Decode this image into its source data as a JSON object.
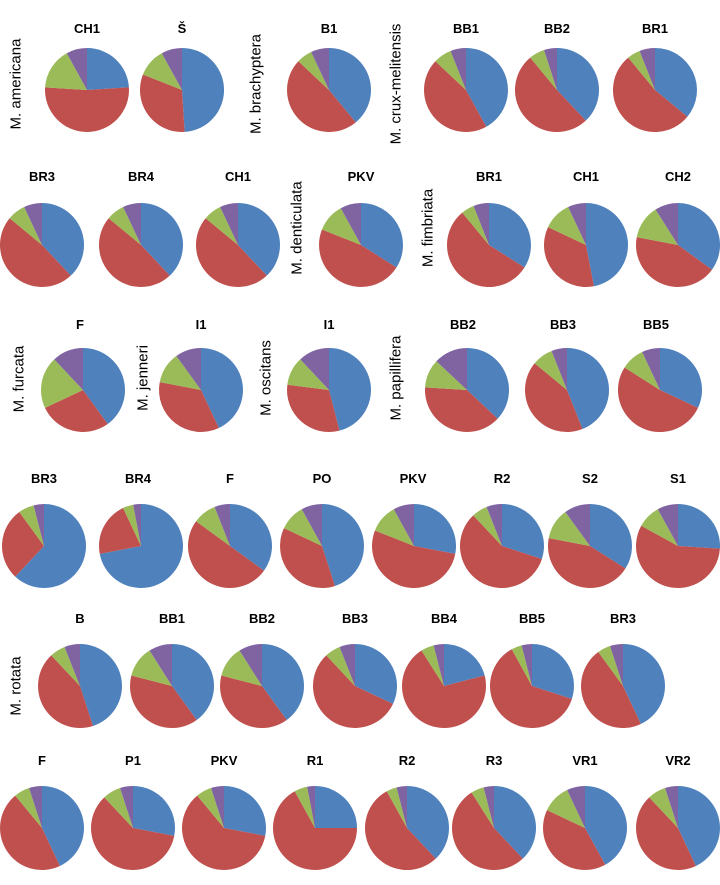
{
  "chart_data": {
    "type": "pie",
    "slice_colors": [
      "#4f81bd",
      "#c0504d",
      "#9bbb59",
      "#8064a2"
    ],
    "species": [
      "M. americana",
      "M. brachyptera",
      "M. crux-melitensis",
      "M. denticulata",
      "M. fimbriata",
      "M. furcata",
      "M. jenneri",
      "M. oscitans",
      "M. papillifera",
      "M. rotata"
    ],
    "pies": [
      {
        "label": "CH1",
        "values": [
          0.24,
          0.52,
          0.16,
          0.08
        ]
      },
      {
        "label": "Š",
        "values": [
          0.49,
          0.32,
          0.11,
          0.08
        ]
      },
      {
        "label": "B1",
        "values": [
          0.39,
          0.48,
          0.06,
          0.07
        ]
      },
      {
        "label": "BB1",
        "values": [
          0.42,
          0.45,
          0.07,
          0.06
        ]
      },
      {
        "label": "BB2",
        "values": [
          0.38,
          0.51,
          0.06,
          0.05
        ]
      },
      {
        "label": "BR1",
        "values": [
          0.36,
          0.53,
          0.05,
          0.06
        ]
      },
      {
        "label": "BR3",
        "values": [
          0.38,
          0.48,
          0.07,
          0.07
        ]
      },
      {
        "label": "BR4",
        "values": [
          0.38,
          0.48,
          0.07,
          0.07
        ]
      },
      {
        "label": "CH1",
        "values": [
          0.38,
          0.48,
          0.07,
          0.07
        ]
      },
      {
        "label": "PKV",
        "values": [
          0.34,
          0.47,
          0.11,
          0.08
        ]
      },
      {
        "label": "BR1",
        "values": [
          0.34,
          0.55,
          0.05,
          0.06
        ]
      },
      {
        "label": "CH1",
        "values": [
          0.47,
          0.35,
          0.11,
          0.07
        ]
      },
      {
        "label": "CH2",
        "values": [
          0.35,
          0.43,
          0.13,
          0.09
        ]
      },
      {
        "label": "F",
        "values": [
          0.4,
          0.28,
          0.2,
          0.12
        ]
      },
      {
        "label": "I1",
        "values": [
          0.43,
          0.35,
          0.12,
          0.1
        ]
      },
      {
        "label": "I1",
        "values": [
          0.46,
          0.31,
          0.11,
          0.12
        ]
      },
      {
        "label": "BB2",
        "values": [
          0.37,
          0.39,
          0.11,
          0.13
        ]
      },
      {
        "label": "BB3",
        "values": [
          0.44,
          0.42,
          0.08,
          0.06
        ]
      },
      {
        "label": "BB5",
        "values": [
          0.32,
          0.52,
          0.09,
          0.07
        ]
      },
      {
        "label": "BR3",
        "values": [
          0.62,
          0.28,
          0.06,
          0.04
        ]
      },
      {
        "label": "BR4",
        "values": [
          0.72,
          0.21,
          0.04,
          0.03
        ]
      },
      {
        "label": "F",
        "values": [
          0.35,
          0.5,
          0.09,
          0.06
        ]
      },
      {
        "label": "PO",
        "values": [
          0.45,
          0.37,
          0.1,
          0.08
        ]
      },
      {
        "label": "PKV",
        "values": [
          0.28,
          0.53,
          0.11,
          0.08
        ]
      },
      {
        "label": "R2",
        "values": [
          0.3,
          0.58,
          0.06,
          0.06
        ]
      },
      {
        "label": "S2",
        "values": [
          0.34,
          0.44,
          0.12,
          0.1
        ]
      },
      {
        "label": "S1",
        "values": [
          0.26,
          0.57,
          0.09,
          0.08
        ]
      },
      {
        "label": "B",
        "values": [
          0.45,
          0.43,
          0.06,
          0.06
        ]
      },
      {
        "label": "BB1",
        "values": [
          0.4,
          0.39,
          0.12,
          0.09
        ]
      },
      {
        "label": "BB2",
        "values": [
          0.4,
          0.39,
          0.12,
          0.09
        ]
      },
      {
        "label": "BB3",
        "values": [
          0.32,
          0.56,
          0.06,
          0.06
        ]
      },
      {
        "label": "BB4",
        "values": [
          0.21,
          0.7,
          0.05,
          0.04
        ]
      },
      {
        "label": "BB5",
        "values": [
          0.3,
          0.62,
          0.04,
          0.04
        ]
      },
      {
        "label": "BR3",
        "values": [
          0.43,
          0.47,
          0.05,
          0.05
        ]
      },
      {
        "label": "F",
        "values": [
          0.43,
          0.46,
          0.06,
          0.05
        ]
      },
      {
        "label": "P1",
        "values": [
          0.28,
          0.6,
          0.07,
          0.05
        ]
      },
      {
        "label": "PKV",
        "values": [
          0.28,
          0.61,
          0.06,
          0.05
        ]
      },
      {
        "label": "R1",
        "values": [
          0.25,
          0.67,
          0.05,
          0.03
        ]
      },
      {
        "label": "R2",
        "values": [
          0.38,
          0.54,
          0.04,
          0.04
        ]
      },
      {
        "label": "R3",
        "values": [
          0.38,
          0.53,
          0.05,
          0.04
        ]
      },
      {
        "label": "VR1",
        "values": [
          0.42,
          0.4,
          0.11,
          0.07
        ]
      },
      {
        "label": "VR2",
        "values": [
          0.43,
          0.45,
          0.07,
          0.05
        ]
      }
    ]
  }
}
